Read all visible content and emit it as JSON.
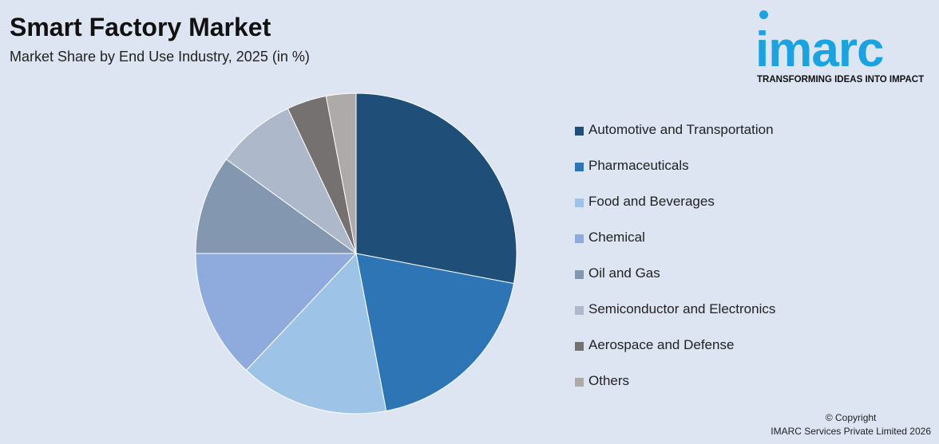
{
  "header": {
    "title": "Smart Factory Market",
    "subtitle": "Market Share by End Use Industry, 2025 (in %)"
  },
  "logo": {
    "word": "imarc",
    "tagline": "TRANSFORMING IDEAS INTO IMPACT",
    "color": "#1aa3e0"
  },
  "footer": {
    "copyright_line1": "© Copyright",
    "copyright_line2": "IMARC Services Private Limited 2026"
  },
  "chart_data": {
    "type": "pie",
    "title": "Smart Factory Market",
    "subtitle": "Market Share by End Use Industry, 2025 (in %)",
    "legend_position": "right",
    "categories": [
      "Automotive and Transportation",
      "Pharmaceuticals",
      "Food and Beverages",
      "Chemical",
      "Oil and Gas",
      "Semiconductor and Electronics",
      "Aerospace and Defense",
      "Others"
    ],
    "values": [
      28,
      19,
      15,
      13,
      10,
      8,
      4,
      3
    ],
    "colors": [
      "#1f4e79",
      "#2e75b6",
      "#9dc3e6",
      "#8faadc",
      "#8497b0",
      "#adb9ca",
      "#767171",
      "#aeaaaa"
    ]
  }
}
